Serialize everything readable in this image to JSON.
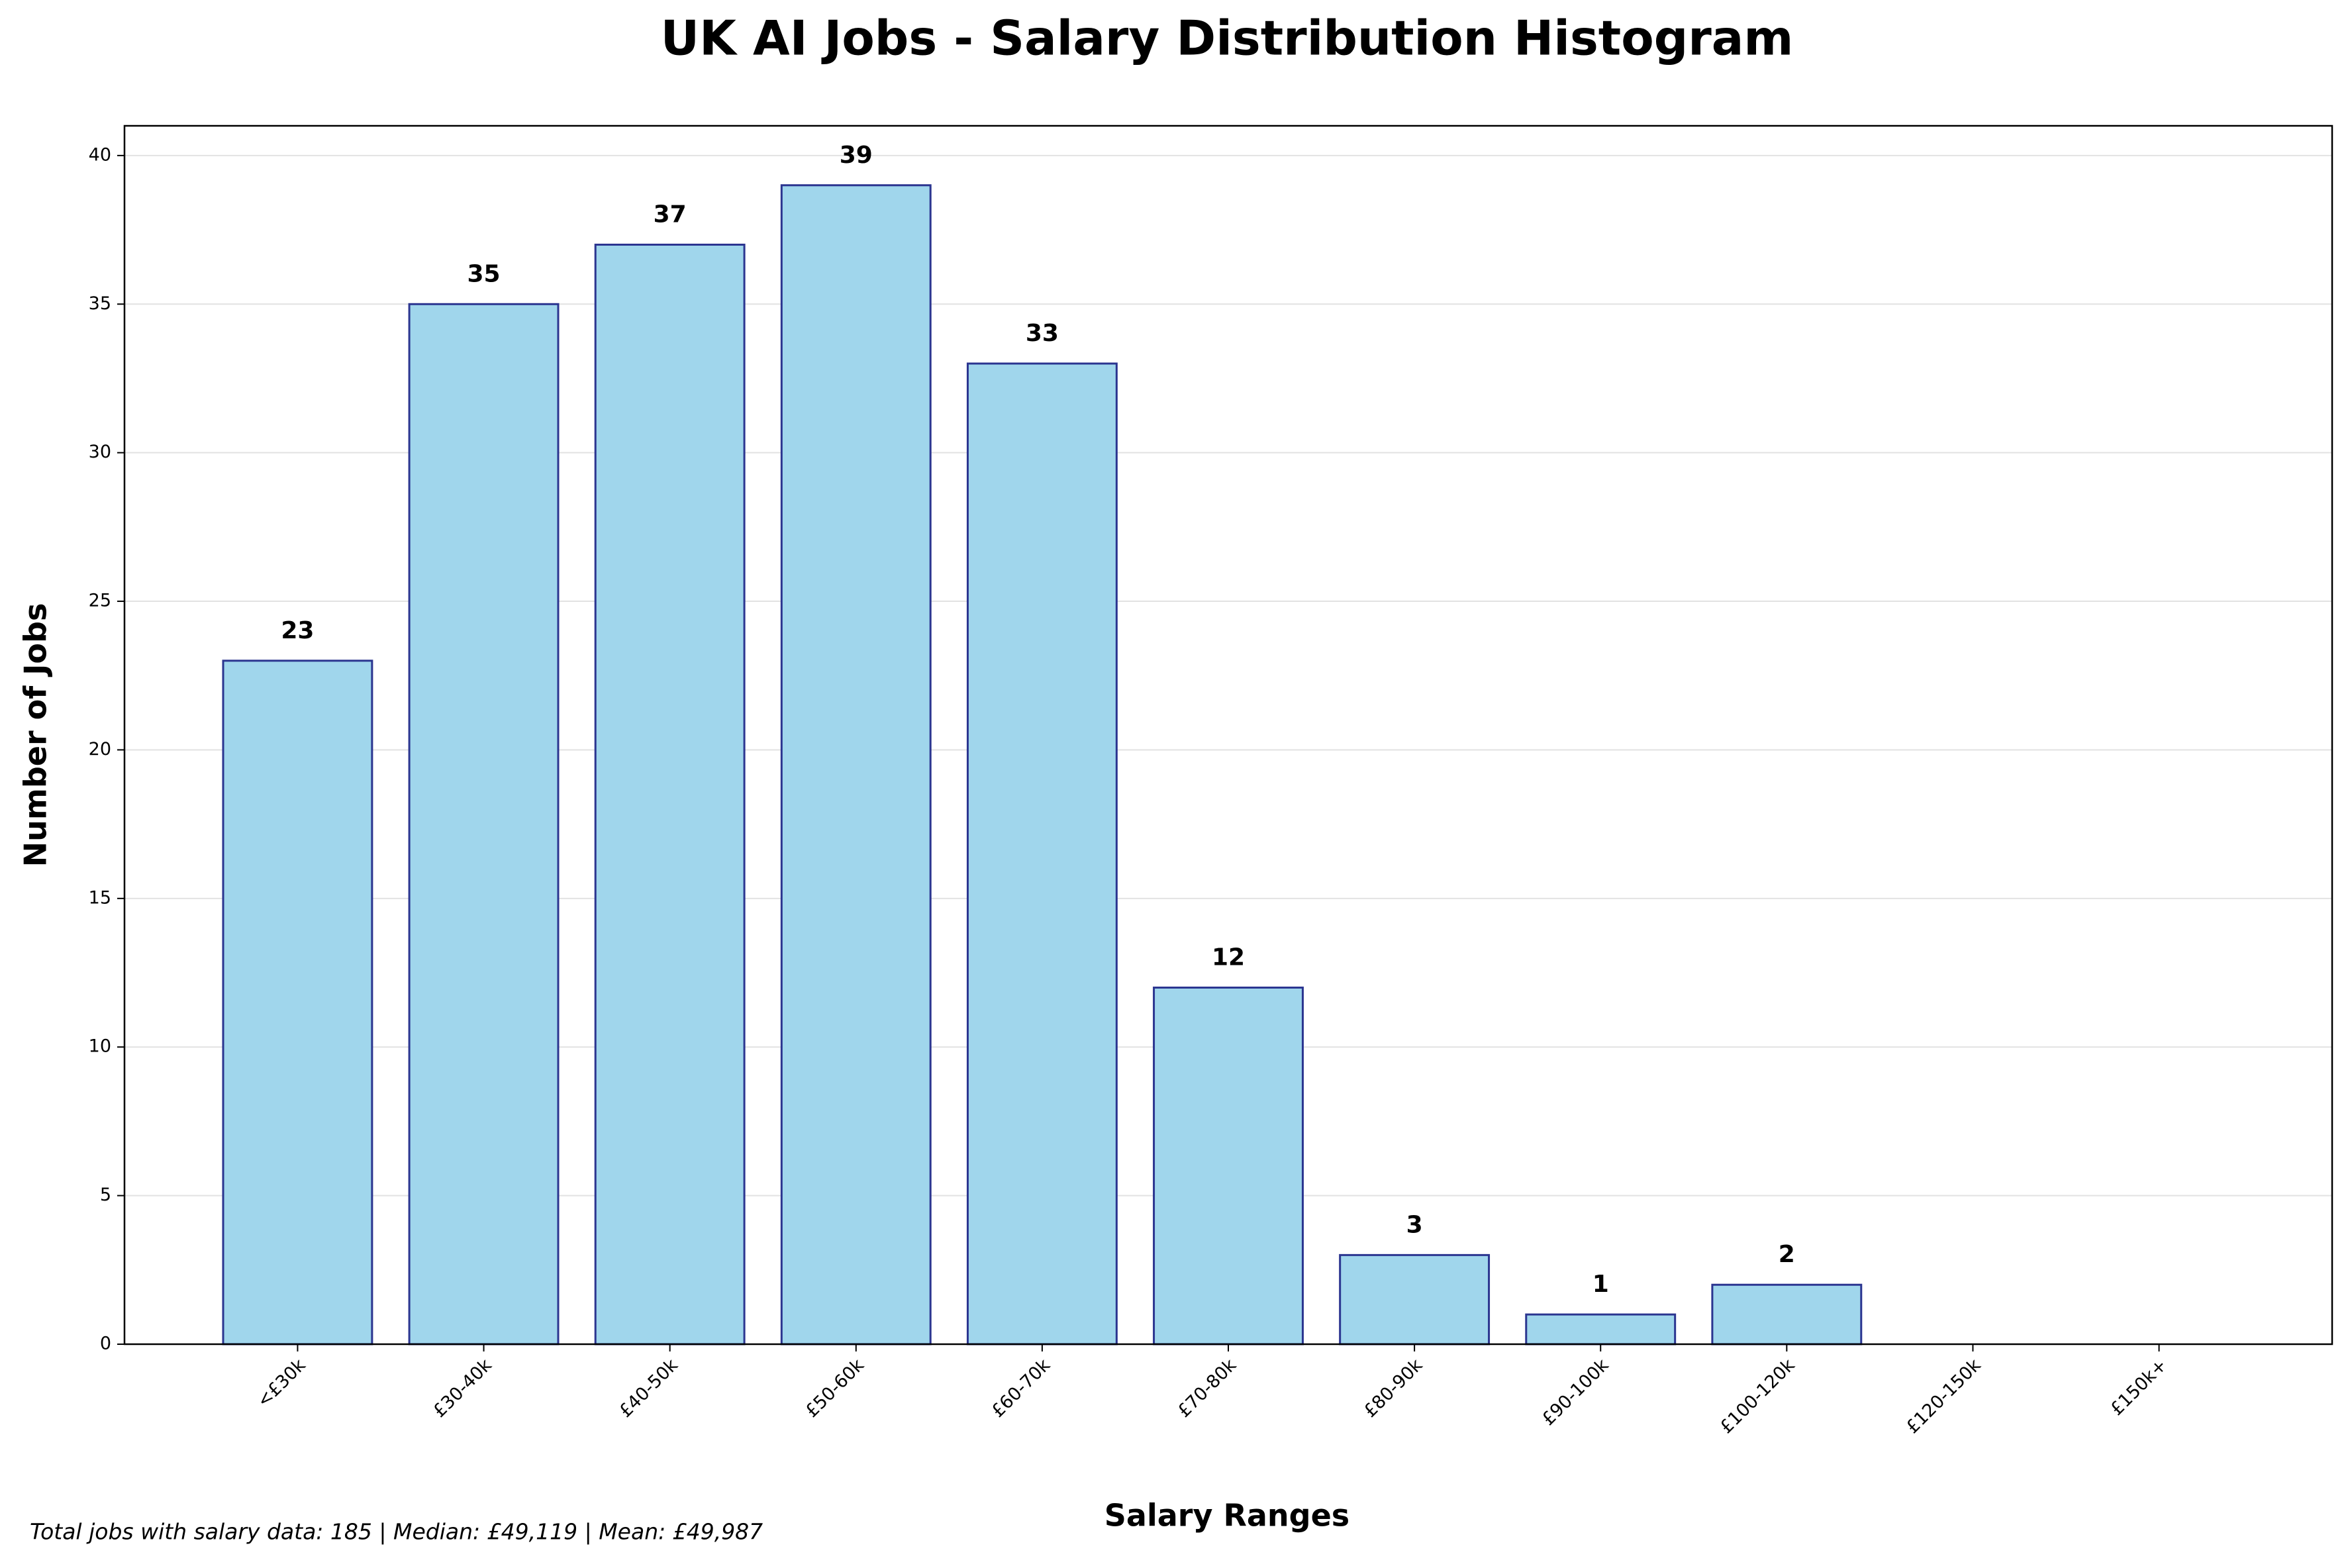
{
  "chart_data": {
    "type": "bar",
    "title": "UK AI Jobs - Salary Distribution Histogram",
    "x_label": "Salary Ranges",
    "y_label": "Number of Jobs",
    "categories": [
      "<£30k",
      "£30-40k",
      "£40-50k",
      "£50-60k",
      "£60-70k",
      "£70-80k",
      "£80-90k",
      "£90-100k",
      "£100-120k",
      "£120-150k",
      "£150k+"
    ],
    "values": [
      23,
      35,
      37,
      39,
      33,
      12,
      3,
      1,
      2,
      0,
      0
    ],
    "color": "#a0d6ec",
    "edge_color": "#2b3590",
    "ylim": [
      0,
      41
    ],
    "yticks": [
      0,
      5,
      10,
      15,
      20,
      25,
      30,
      35,
      40
    ],
    "grid": true,
    "footnote": "Total jobs with salary data: 185 | Median: £49,119 | Mean: £49,987"
  }
}
